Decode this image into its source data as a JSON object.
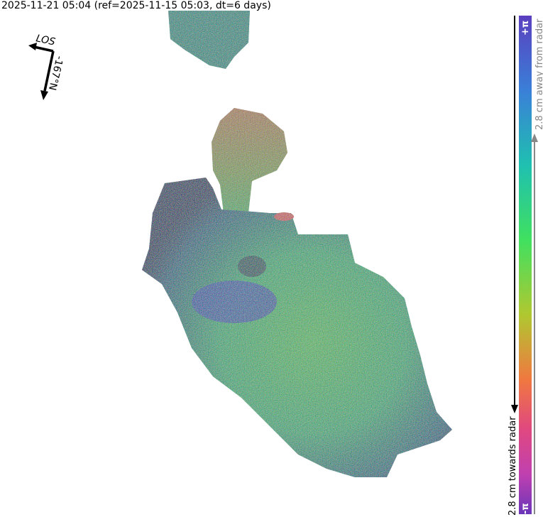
{
  "title": "2025-11-21 05:04 (ref=2025-11-15 05:03, dt=6 days)",
  "compass": {
    "los_label": "LOS",
    "heading_label": "-167°N",
    "heading_deg": -167
  },
  "colorbar": {
    "top_label": "+π",
    "bottom_label": "-π",
    "away_label": "2.8 cm away from radar",
    "towards_label": "2.8 cm towards radar",
    "colors": [
      "#5a3fbf",
      "#3a7fd8",
      "#1fc0b0",
      "#40e060",
      "#b0c830",
      "#f07840",
      "#e04880",
      "#c040b0",
      "#6a35b8"
    ]
  },
  "map": {
    "description_colors": {
      "green": "#50d050",
      "blue": "#4060c0",
      "orange": "#d09040"
    }
  }
}
